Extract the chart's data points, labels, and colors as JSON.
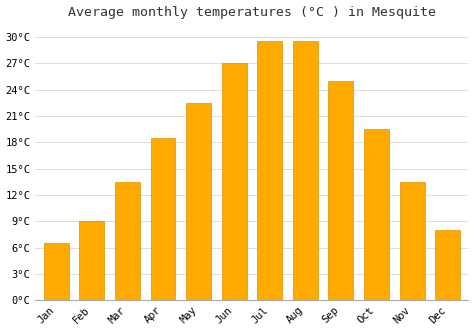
{
  "title": "Average monthly temperatures (°C ) in Mesquite",
  "months": [
    "Jan",
    "Feb",
    "Mar",
    "Apr",
    "May",
    "Jun",
    "Jul",
    "Aug",
    "Sep",
    "Oct",
    "Nov",
    "Dec"
  ],
  "values": [
    6.5,
    9.0,
    13.5,
    18.5,
    22.5,
    27.0,
    29.5,
    29.5,
    25.0,
    19.5,
    13.5,
    8.0
  ],
  "bar_color": "#FFAA00",
  "bar_edge_color": "#E09000",
  "ylim": [
    0,
    31.5
  ],
  "yticks": [
    0,
    3,
    6,
    9,
    12,
    15,
    18,
    21,
    24,
    27,
    30
  ],
  "ytick_labels": [
    "0°C",
    "3°C",
    "6°C",
    "9°C",
    "12°C",
    "15°C",
    "18°C",
    "21°C",
    "24°C",
    "27°C",
    "30°C"
  ],
  "background_color": "#ffffff",
  "plot_bg_color": "#ffffff",
  "grid_color": "#dddddd",
  "title_fontsize": 9.5,
  "tick_fontsize": 7.5,
  "bar_width": 0.7
}
